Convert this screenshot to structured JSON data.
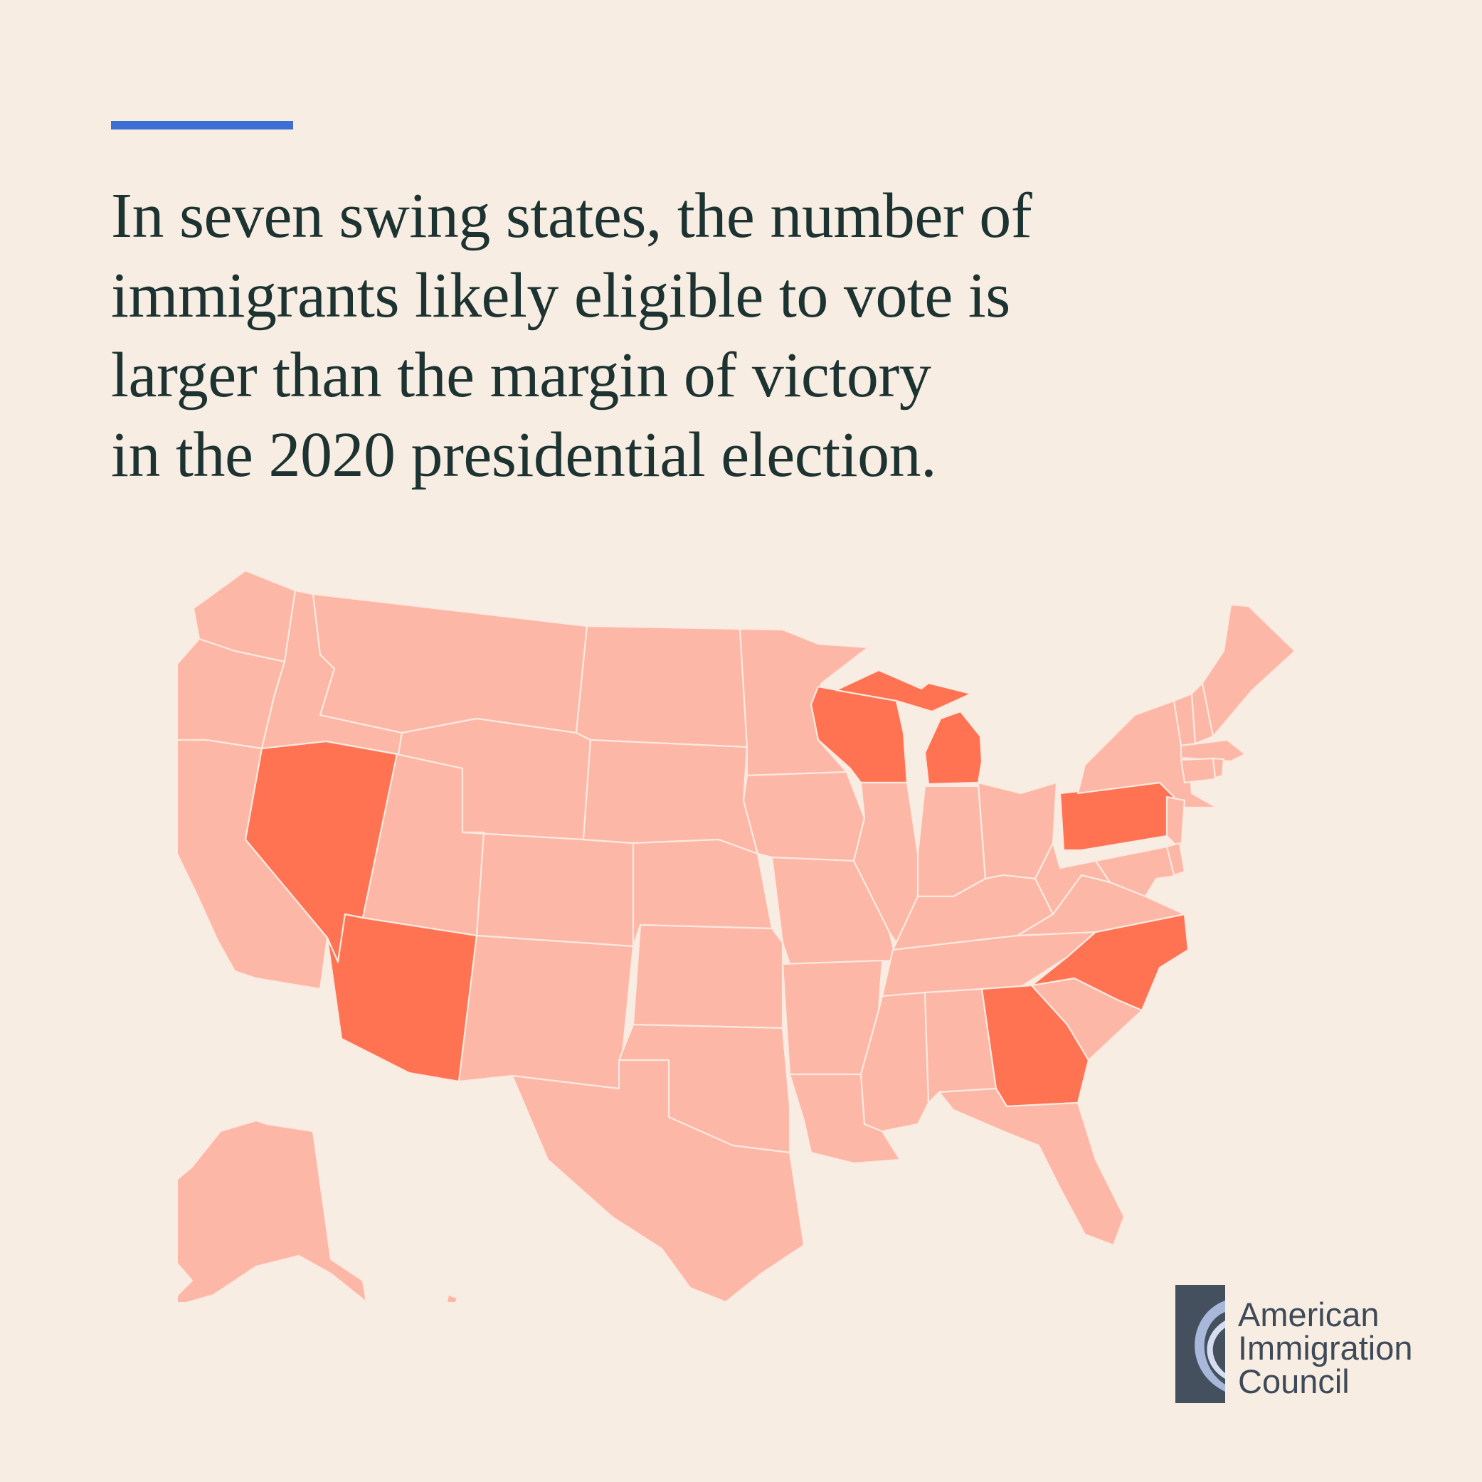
{
  "headline": {
    "lines": [
      "In seven swing states, the number of",
      "immigrants likely eligible to vote is",
      "larger than the margin of victory",
      "in the 2020 presidential election."
    ]
  },
  "colors": {
    "background": "#f8ede3",
    "accent_rule": "#3b6fd1",
    "headline_text": "#1d3331",
    "state_default": "#fdb7a6",
    "state_swing": "#ff7352",
    "state_border": "#fbe9e0"
  },
  "map": {
    "type": "us-choropleth",
    "swing_states": [
      "Nevada",
      "Arizona",
      "Wisconsin",
      "Michigan",
      "Pennsylvania",
      "Georgia",
      "North Carolina"
    ],
    "swing_state_count": 7
  },
  "logo": {
    "lines": [
      "American",
      "Immigration",
      "Council"
    ],
    "mark_icon": "crescent-swoosh-icon"
  }
}
